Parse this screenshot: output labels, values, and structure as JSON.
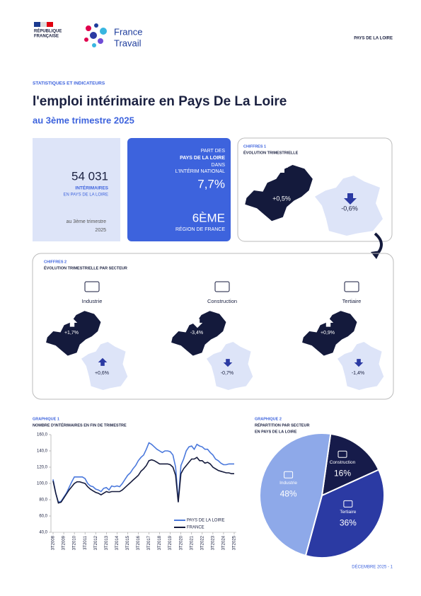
{
  "logo_left": [
    "RÉPUBLIQUE",
    "FRANÇAISE"
  ],
  "logo_right": [
    "France",
    "Travail"
  ],
  "region_tag": "PAYS DE LA LOIRE",
  "kicker": "STATISTIQUES ET INDICATEURS",
  "title": "l'emploi intérimaire en Pays De La Loire",
  "subtitle": "au 3ème trimestre 2025",
  "kpi": {
    "count": "54 031",
    "count_label": "INTÉRIMAIRES",
    "count_sub": "EN PAYS DE LA LOIRE",
    "period": [
      "au 3ème trimestre",
      "2025"
    ],
    "share_lines": [
      "PART DES",
      "PAYS DE LA LOIRE",
      "DANS",
      "L'INTÉRIM NATIONAL"
    ],
    "share": "7,7%",
    "rank": "6ÈME",
    "rank_label": "RÉGION DE FRANCE"
  },
  "chiffres1": {
    "kicker": "CHIFFRES 1",
    "title": "ÉVOLUTION TRIMESTRIELLE",
    "region": "+0,5%",
    "france": "-0,6%"
  },
  "chiffres2": {
    "kicker": "CHIFFRES 2",
    "title": "ÉVOLUTION TRIMESTRIELLE PAR SECTEUR",
    "sectors": [
      {
        "name": "Industrie",
        "region": "+1,7%",
        "france": "+0,6%"
      },
      {
        "name": "Construction",
        "region": "-3,4%",
        "france": "-0,7%"
      },
      {
        "name": "Tertiaire",
        "region": "+0,9%",
        "france": "-1,4%"
      }
    ]
  },
  "chart_data": [
    {
      "type": "line",
      "label": "GRAPHIQUE 1",
      "title": "NOMBRE D'INTÉRIMAIRES EN FIN DE TRIMESTRE",
      "categories": [
        "3T2008",
        null,
        null,
        null,
        "3T2009",
        null,
        null,
        null,
        "3T2010",
        null,
        null,
        null,
        "3T2011",
        null,
        null,
        null,
        "3T2012",
        null,
        null,
        null,
        "3T2013",
        null,
        null,
        null,
        "3T2014",
        null,
        null,
        null,
        "3T2015",
        null,
        null,
        null,
        "3T2016",
        null,
        null,
        null,
        "3T2017",
        null,
        null,
        null,
        "3T2018",
        null,
        null,
        null,
        "3T2019",
        null,
        null,
        null,
        "3T2020",
        null,
        null,
        null,
        "3T2021",
        null,
        null,
        null,
        "3T2022",
        null,
        null,
        null,
        "3T2023",
        null,
        null,
        null,
        "3T2024",
        null,
        null,
        null,
        "3T2025"
      ],
      "series": [
        {
          "name": "PAYS DE LA LOIRE",
          "color": "#4a78dc",
          "values": [
            105,
            88,
            77,
            78,
            83,
            88,
            95,
            102,
            108,
            108,
            108,
            108,
            106,
            100,
            97,
            96,
            93,
            92,
            90,
            94,
            95,
            92,
            97,
            96,
            97,
            96,
            100,
            105,
            110,
            113,
            118,
            122,
            128,
            132,
            135,
            142,
            150,
            148,
            145,
            142,
            140,
            138,
            140,
            140,
            139,
            135,
            120,
            78,
            122,
            130,
            140,
            145,
            146,
            142,
            148,
            146,
            145,
            142,
            142,
            138,
            135,
            130,
            128,
            125,
            123,
            123,
            124,
            124,
            124
          ]
        },
        {
          "name": "FRANCE",
          "color": "#141a3c",
          "values": [
            103,
            88,
            76,
            77,
            82,
            87,
            92,
            96,
            100,
            102,
            102,
            101,
            100,
            96,
            93,
            91,
            89,
            88,
            86,
            88,
            90,
            89,
            90,
            90,
            90,
            90,
            92,
            95,
            98,
            101,
            104,
            107,
            110,
            115,
            118,
            122,
            128,
            129,
            128,
            126,
            124,
            124,
            124,
            124,
            123,
            120,
            110,
            77,
            112,
            118,
            122,
            126,
            130,
            130,
            132,
            128,
            128,
            125,
            126,
            124,
            120,
            118,
            116,
            115,
            114,
            113,
            113,
            112,
            112
          ]
        }
      ],
      "ylim": [
        40,
        160
      ],
      "yticks": [
        {
          "value": 40,
          "label": "40,0"
        },
        {
          "value": 60,
          "label": "60,0"
        },
        {
          "value": 80,
          "label": "80,0"
        },
        {
          "value": 100,
          "label": "100,0"
        },
        {
          "value": 120,
          "label": "120,0"
        },
        {
          "value": 140,
          "label": "140,0"
        },
        {
          "value": 160,
          "label": "160,0"
        }
      ],
      "grid": false,
      "legend": "bottom-right"
    },
    {
      "type": "pie",
      "label": "GRAPHIQUE 2",
      "title": [
        "RÉPARTITION PAR SECTEUR",
        "EN PAYS DE LA LOIRE"
      ],
      "categories": [
        "Construction",
        "Tertiaire",
        "Industrie"
      ],
      "values": [
        16,
        36,
        48
      ],
      "value_labels": [
        "16%",
        "36%",
        "48%"
      ],
      "colors": [
        "#161b4a",
        "#2b3aa3",
        "#8ea9e9"
      ]
    }
  ],
  "footer": "DÉCEMBRE 2025 - 1"
}
